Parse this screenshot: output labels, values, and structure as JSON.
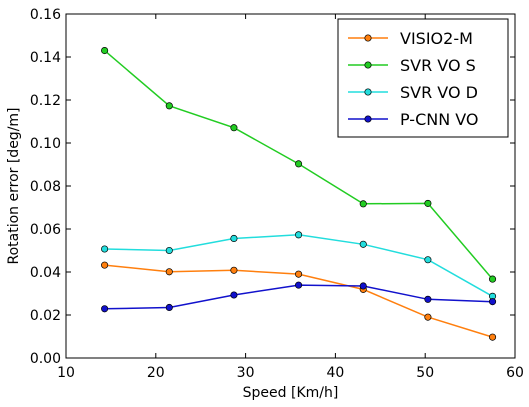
{
  "chart_data": {
    "type": "line",
    "xlabel": "Speed [Km/h]",
    "ylabel": "Rotation error [deg/m]",
    "xlim": [
      10,
      60
    ],
    "ylim": [
      0.0,
      0.16
    ],
    "xticks": [
      10,
      20,
      30,
      40,
      50,
      60
    ],
    "xtick_labels": [
      "10",
      "20",
      "30",
      "40",
      "50",
      "60"
    ],
    "yticks": [
      0.0,
      0.02,
      0.04,
      0.06,
      0.08,
      0.1,
      0.12,
      0.14,
      0.16
    ],
    "ytick_labels": [
      "0.00",
      "0.02",
      "0.04",
      "0.06",
      "0.08",
      "0.10",
      "0.12",
      "0.14",
      "0.16"
    ],
    "grid": false,
    "legend_position": "top-right",
    "x": [
      14.3,
      21.5,
      28.7,
      35.9,
      43.1,
      50.3,
      57.5
    ],
    "series": [
      {
        "name": "VISIO2-M",
        "color": "#ff7f0e",
        "values": [
          0.0432,
          0.0401,
          0.0408,
          0.039,
          0.0319,
          0.019,
          0.0097
        ]
      },
      {
        "name": "SVR VO S",
        "color": "#22cc22",
        "values": [
          0.143,
          0.1173,
          0.1071,
          0.0903,
          0.0717,
          0.0719,
          0.0367
        ]
      },
      {
        "name": "SVR VO D",
        "color": "#22dddd",
        "values": [
          0.0507,
          0.05,
          0.0556,
          0.0573,
          0.0529,
          0.0457,
          0.0287
        ]
      },
      {
        "name": "P-CNN VO",
        "color": "#1111cc",
        "values": [
          0.0229,
          0.0235,
          0.0293,
          0.0339,
          0.0335,
          0.0273,
          0.0262
        ]
      }
    ]
  }
}
